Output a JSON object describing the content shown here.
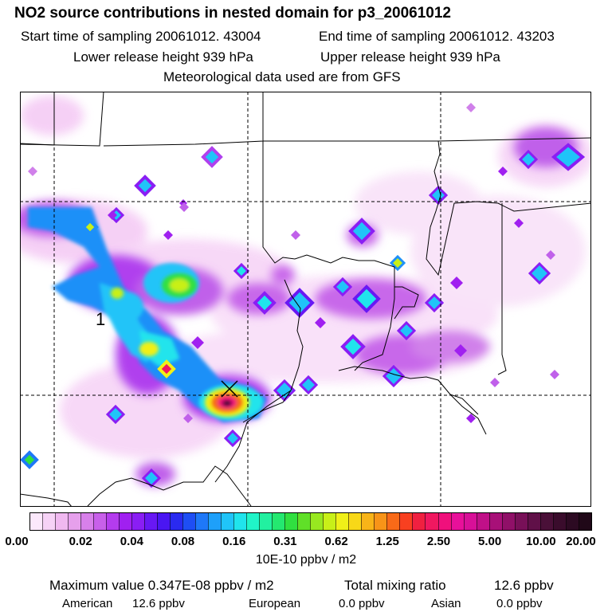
{
  "header": {
    "title": "NO2 source contributions in nested domain for p3_20061012",
    "start_label": "Start time of sampling 20061012. 43004",
    "end_label": "End time of sampling 20061012. 43203",
    "lower_label": "Lower release height  939 hPa",
    "upper_label": "Upper release height  939 hPa",
    "met_label": "Meteorological data used are from GFS"
  },
  "map": {
    "marker_label": "1",
    "background": "#ffffff",
    "boundary_color": "#000000",
    "gridline_style": "dashed"
  },
  "legend": {
    "tick_labels": [
      "0.00",
      "0.02",
      "0.04",
      "0.08",
      "0.16",
      "0.31",
      "0.62",
      "1.25",
      "2.50",
      "5.00",
      "10.00",
      "20.00"
    ],
    "colors": [
      "#fce8fc",
      "#f6d2f6",
      "#f0b8f0",
      "#e6a0ec",
      "#d880ea",
      "#c860ea",
      "#b43cee",
      "#a020f0",
      "#8a1ef4",
      "#6818f4",
      "#4a16f2",
      "#2a2af0",
      "#1e4ef4",
      "#1e78f8",
      "#1ea0fa",
      "#20c4f8",
      "#20e4ec",
      "#20f4c8",
      "#22f0a0",
      "#24e870",
      "#30e040",
      "#60e028",
      "#98e820",
      "#c8f018",
      "#f0f018",
      "#f8d818",
      "#f8b418",
      "#f89418",
      "#f86a18",
      "#f84020",
      "#f02040",
      "#f01860",
      "#f0107c",
      "#e8109a",
      "#d81098",
      "#c01088",
      "#a81078",
      "#901068",
      "#781058",
      "#601048",
      "#4a1038",
      "#3a0c2c",
      "#2c0a22",
      "#200818"
    ],
    "units": "10E-10 ppbv / m2"
  },
  "summary": {
    "max_text": "Maximum value  0.347E-08 ppbv / m2",
    "total_label": "Total mixing ratio",
    "total_value": "12.6 ppbv",
    "american_label": "American",
    "american_value": "12.6 ppbv",
    "european_label": "European",
    "european_value": "0.0 ppbv",
    "asian_label": "Asian",
    "asian_value": "0.0 ppbv"
  }
}
